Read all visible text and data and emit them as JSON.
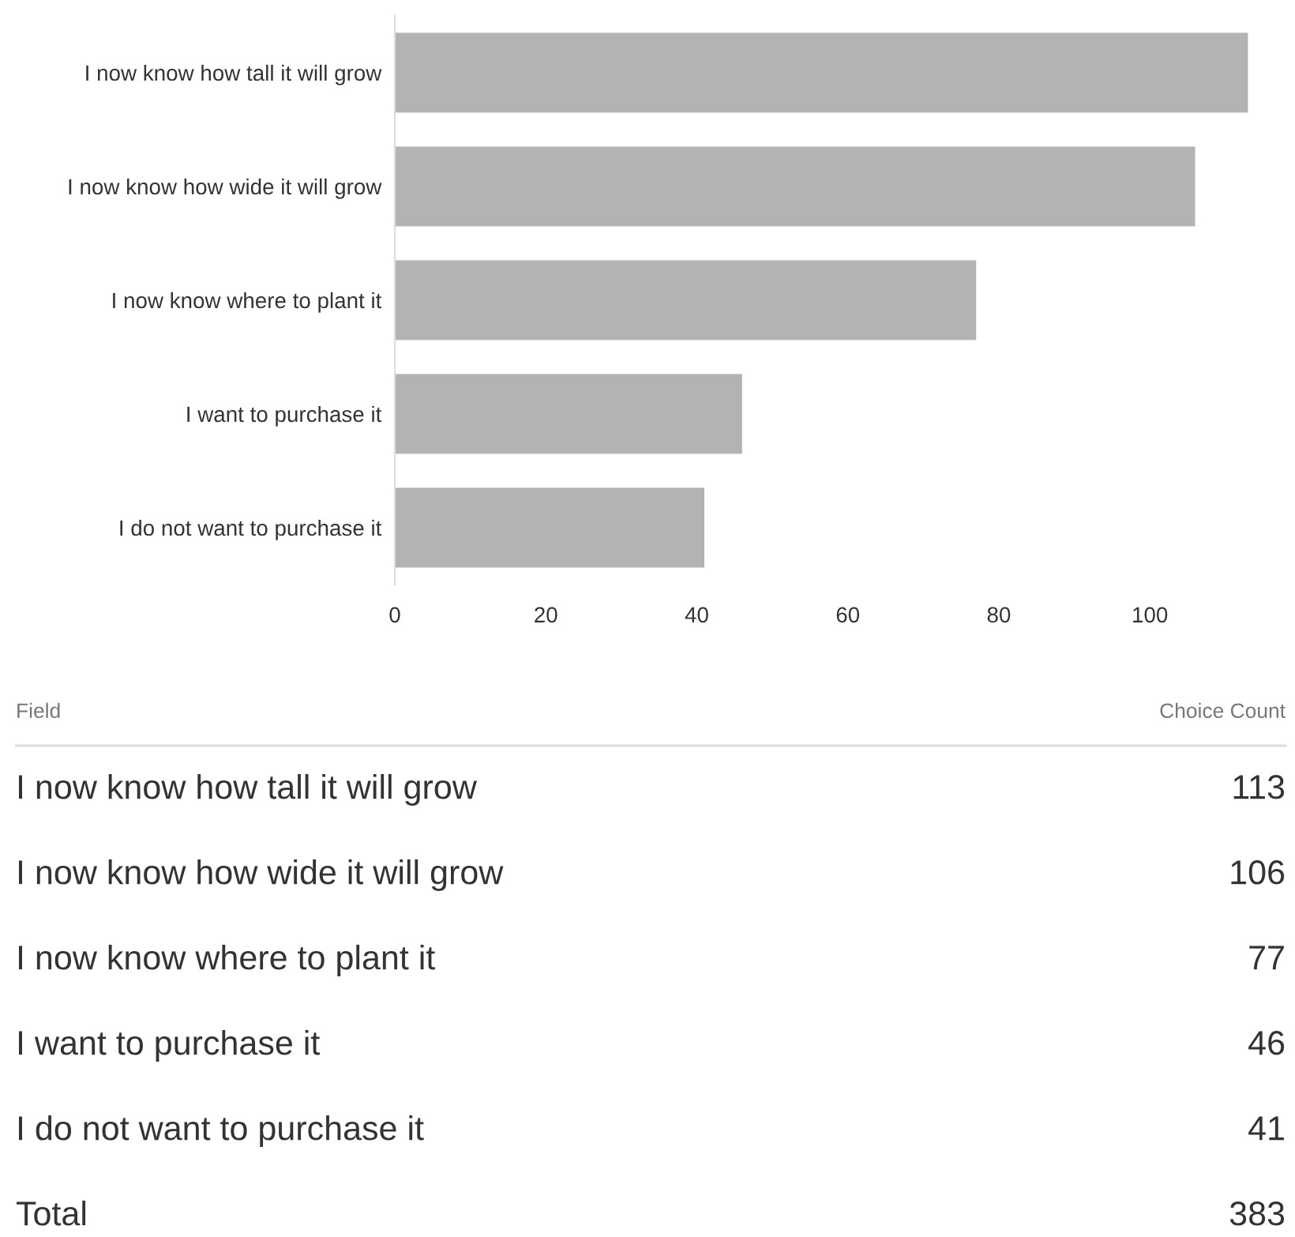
{
  "chart_data": [
    {
      "type": "bar",
      "orientation": "horizontal",
      "categories": [
        "I now know how tall it will grow",
        "I now know how wide it will grow",
        "I now know where to plant it",
        "I want to purchase it",
        "I do not want to purchase it"
      ],
      "values": [
        113,
        106,
        77,
        46,
        41
      ],
      "color": "#b3b3b3",
      "xlim": [
        0,
        114
      ],
      "xticks": [
        0,
        20,
        40,
        60,
        80,
        100
      ],
      "grid": false
    },
    {
      "type": "other",
      "categories": [
        "I now know how tall it will grow",
        "I now know how wide it will grow",
        "I now know where to plant it",
        "I want to purchase it",
        "I do not want to purchase it",
        "Total"
      ],
      "values": [
        113,
        106,
        77,
        46,
        41,
        383
      ],
      "data_labels": true,
      "annotations": [
        "Field",
        "Choice Count"
      ]
    }
  ]
}
